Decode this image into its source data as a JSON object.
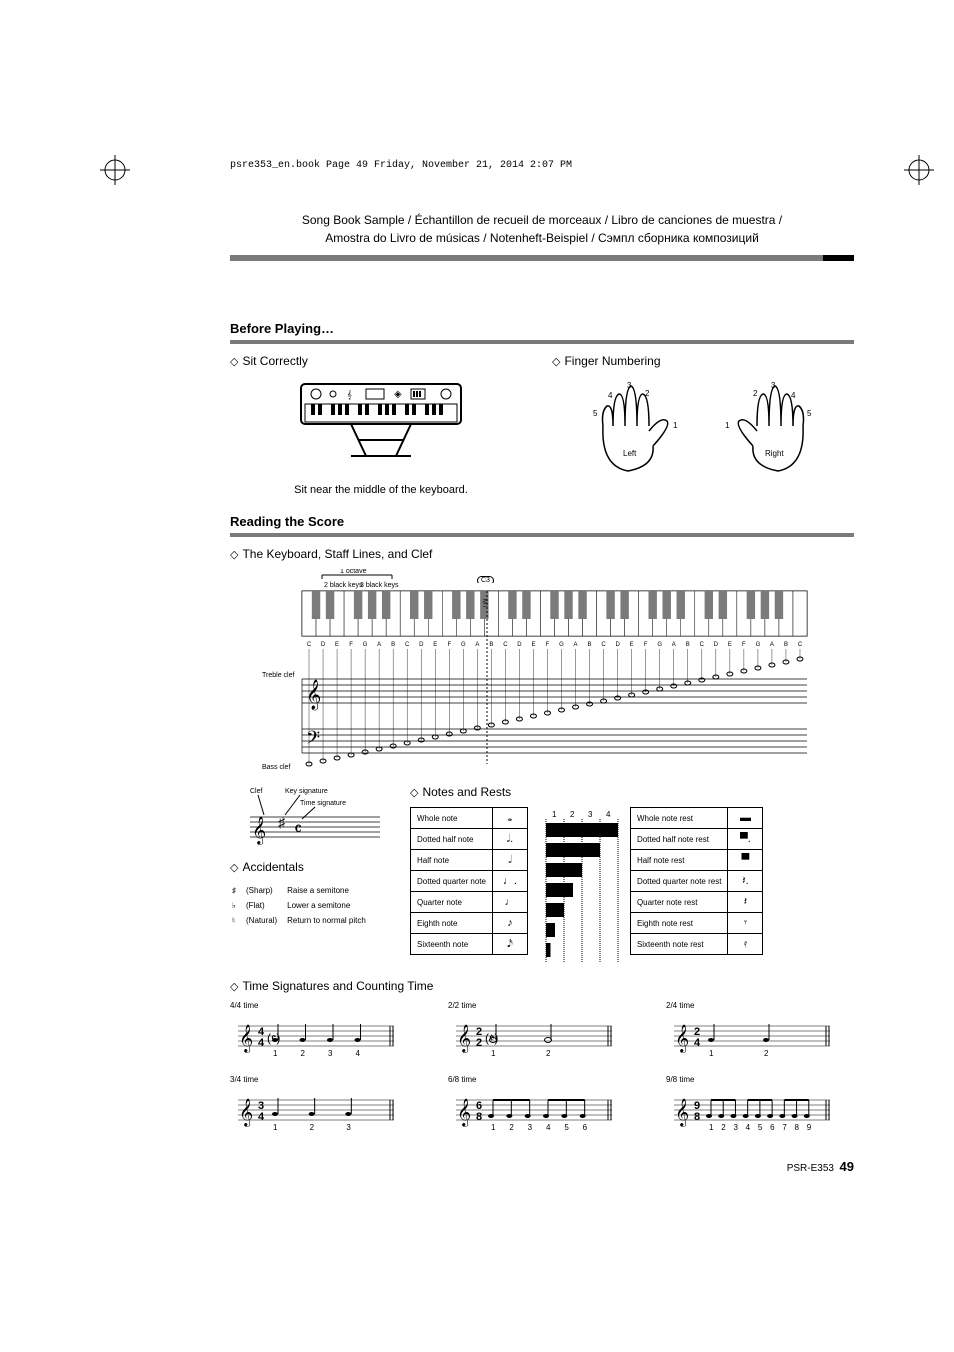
{
  "print_header": "psre353_en.book  Page 49  Friday, November 21, 2014  2:07 PM",
  "doc_header_line1": "Song Book Sample / Échantillon de recueil de morceaux / Libro de canciones de muestra /",
  "doc_header_line2": "Amostra do Livro de músicas / Notenheft-Beispiel / Сэмпл сборника композиций",
  "sections": {
    "before": {
      "title": "Before Playing…",
      "sit": {
        "label": "Sit Correctly",
        "caption": "Sit near the middle of the keyboard."
      },
      "finger": {
        "label": "Finger Numbering",
        "left": "Left",
        "right": "Right",
        "nums": [
          "1",
          "2",
          "3",
          "4",
          "5"
        ]
      }
    },
    "reading": {
      "title": "Reading the Score",
      "keyboard_clef_label": "The Keyboard, Staff Lines, and Clef",
      "octave_label": "1 octave",
      "black2": "2 black keys",
      "black3": "3 black keys",
      "treble_clef": "Treble clef",
      "bass_clef": "Bass clef",
      "middle_c_col": "Middle\nC",
      "c3_label": "C3",
      "note_letters": [
        "C",
        "D",
        "E",
        "F",
        "G",
        "A",
        "B",
        "C",
        "D",
        "E",
        "F",
        "G",
        "A",
        "B",
        "C",
        "D",
        "E",
        "F",
        "G",
        "A",
        "B",
        "C",
        "D",
        "E",
        "F",
        "G",
        "A",
        "B",
        "C",
        "D",
        "E",
        "F",
        "G",
        "A",
        "B",
        "C"
      ],
      "clef_pointer": "Clef",
      "key_sig_pointer": "Key signature",
      "time_sig_pointer": "Time signature",
      "accidentals": {
        "label": "Accidentals",
        "rows": [
          {
            "sym": "♯",
            "name": "(Sharp)",
            "desc": "Raise a semitone"
          },
          {
            "sym": "♭",
            "name": "(Flat)",
            "desc": "Lower a semitone"
          },
          {
            "sym": "♮",
            "name": "(Natural)",
            "desc": "Return to normal pitch"
          }
        ]
      },
      "notes_rests": {
        "label": "Notes and Rests",
        "beat_nums": [
          "1",
          "2",
          "3",
          "4"
        ],
        "notes": [
          {
            "name": "Whole note",
            "sym": "𝅝"
          },
          {
            "name": "Dotted half note",
            "sym": "𝅗𝅥."
          },
          {
            "name": "Half note",
            "sym": "𝅗𝅥"
          },
          {
            "name": "Dotted quarter note",
            "sym": "♩."
          },
          {
            "name": "Quarter note",
            "sym": "♩"
          },
          {
            "name": "Eighth note",
            "sym": "♪"
          },
          {
            "name": "Sixteenth note",
            "sym": "𝅘𝅥𝅯"
          }
        ],
        "rests": [
          {
            "name": "Whole note rest",
            "sym": "▬"
          },
          {
            "name": "Dotted half note rest",
            "sym": "▀."
          },
          {
            "name": "Half note rest",
            "sym": "▀"
          },
          {
            "name": "Dotted quarter note rest",
            "sym": "𝄽."
          },
          {
            "name": "Quarter note rest",
            "sym": "𝄽"
          },
          {
            "name": "Eighth note rest",
            "sym": "𝄾"
          },
          {
            "name": "Sixteenth note rest",
            "sym": "𝄿"
          }
        ]
      },
      "time_sigs": {
        "label": "Time Signatures and Counting Time",
        "items": [
          {
            "label": "4/4 time",
            "sig": "4/4",
            "extra": "(𝄴)",
            "counts": [
              "1",
              "2",
              "3",
              "4"
            ]
          },
          {
            "label": "2/2 time",
            "sig": "2/2",
            "extra": "(𝄵)",
            "counts": [
              "1",
              "2"
            ]
          },
          {
            "label": "2/4 time",
            "sig": "2/4",
            "extra": "",
            "counts": [
              "1",
              "2"
            ]
          },
          {
            "label": "3/4 time",
            "sig": "3/4",
            "extra": "",
            "counts": [
              "1",
              "2",
              "3"
            ]
          },
          {
            "label": "6/8 time",
            "sig": "6/8",
            "extra": "",
            "counts": [
              "1",
              "2",
              "3",
              "4",
              "5",
              "6"
            ]
          },
          {
            "label": "9/8 time",
            "sig": "9/8",
            "extra": "",
            "counts": [
              "1",
              "2",
              "3",
              "4",
              "5",
              "6",
              "7",
              "8",
              "9"
            ]
          }
        ]
      }
    }
  },
  "footer": {
    "model": "PSR-E353",
    "page": "49"
  },
  "colors": {
    "rule_grey": "#7a7a7a",
    "key_fill": "#7b7b7b"
  }
}
